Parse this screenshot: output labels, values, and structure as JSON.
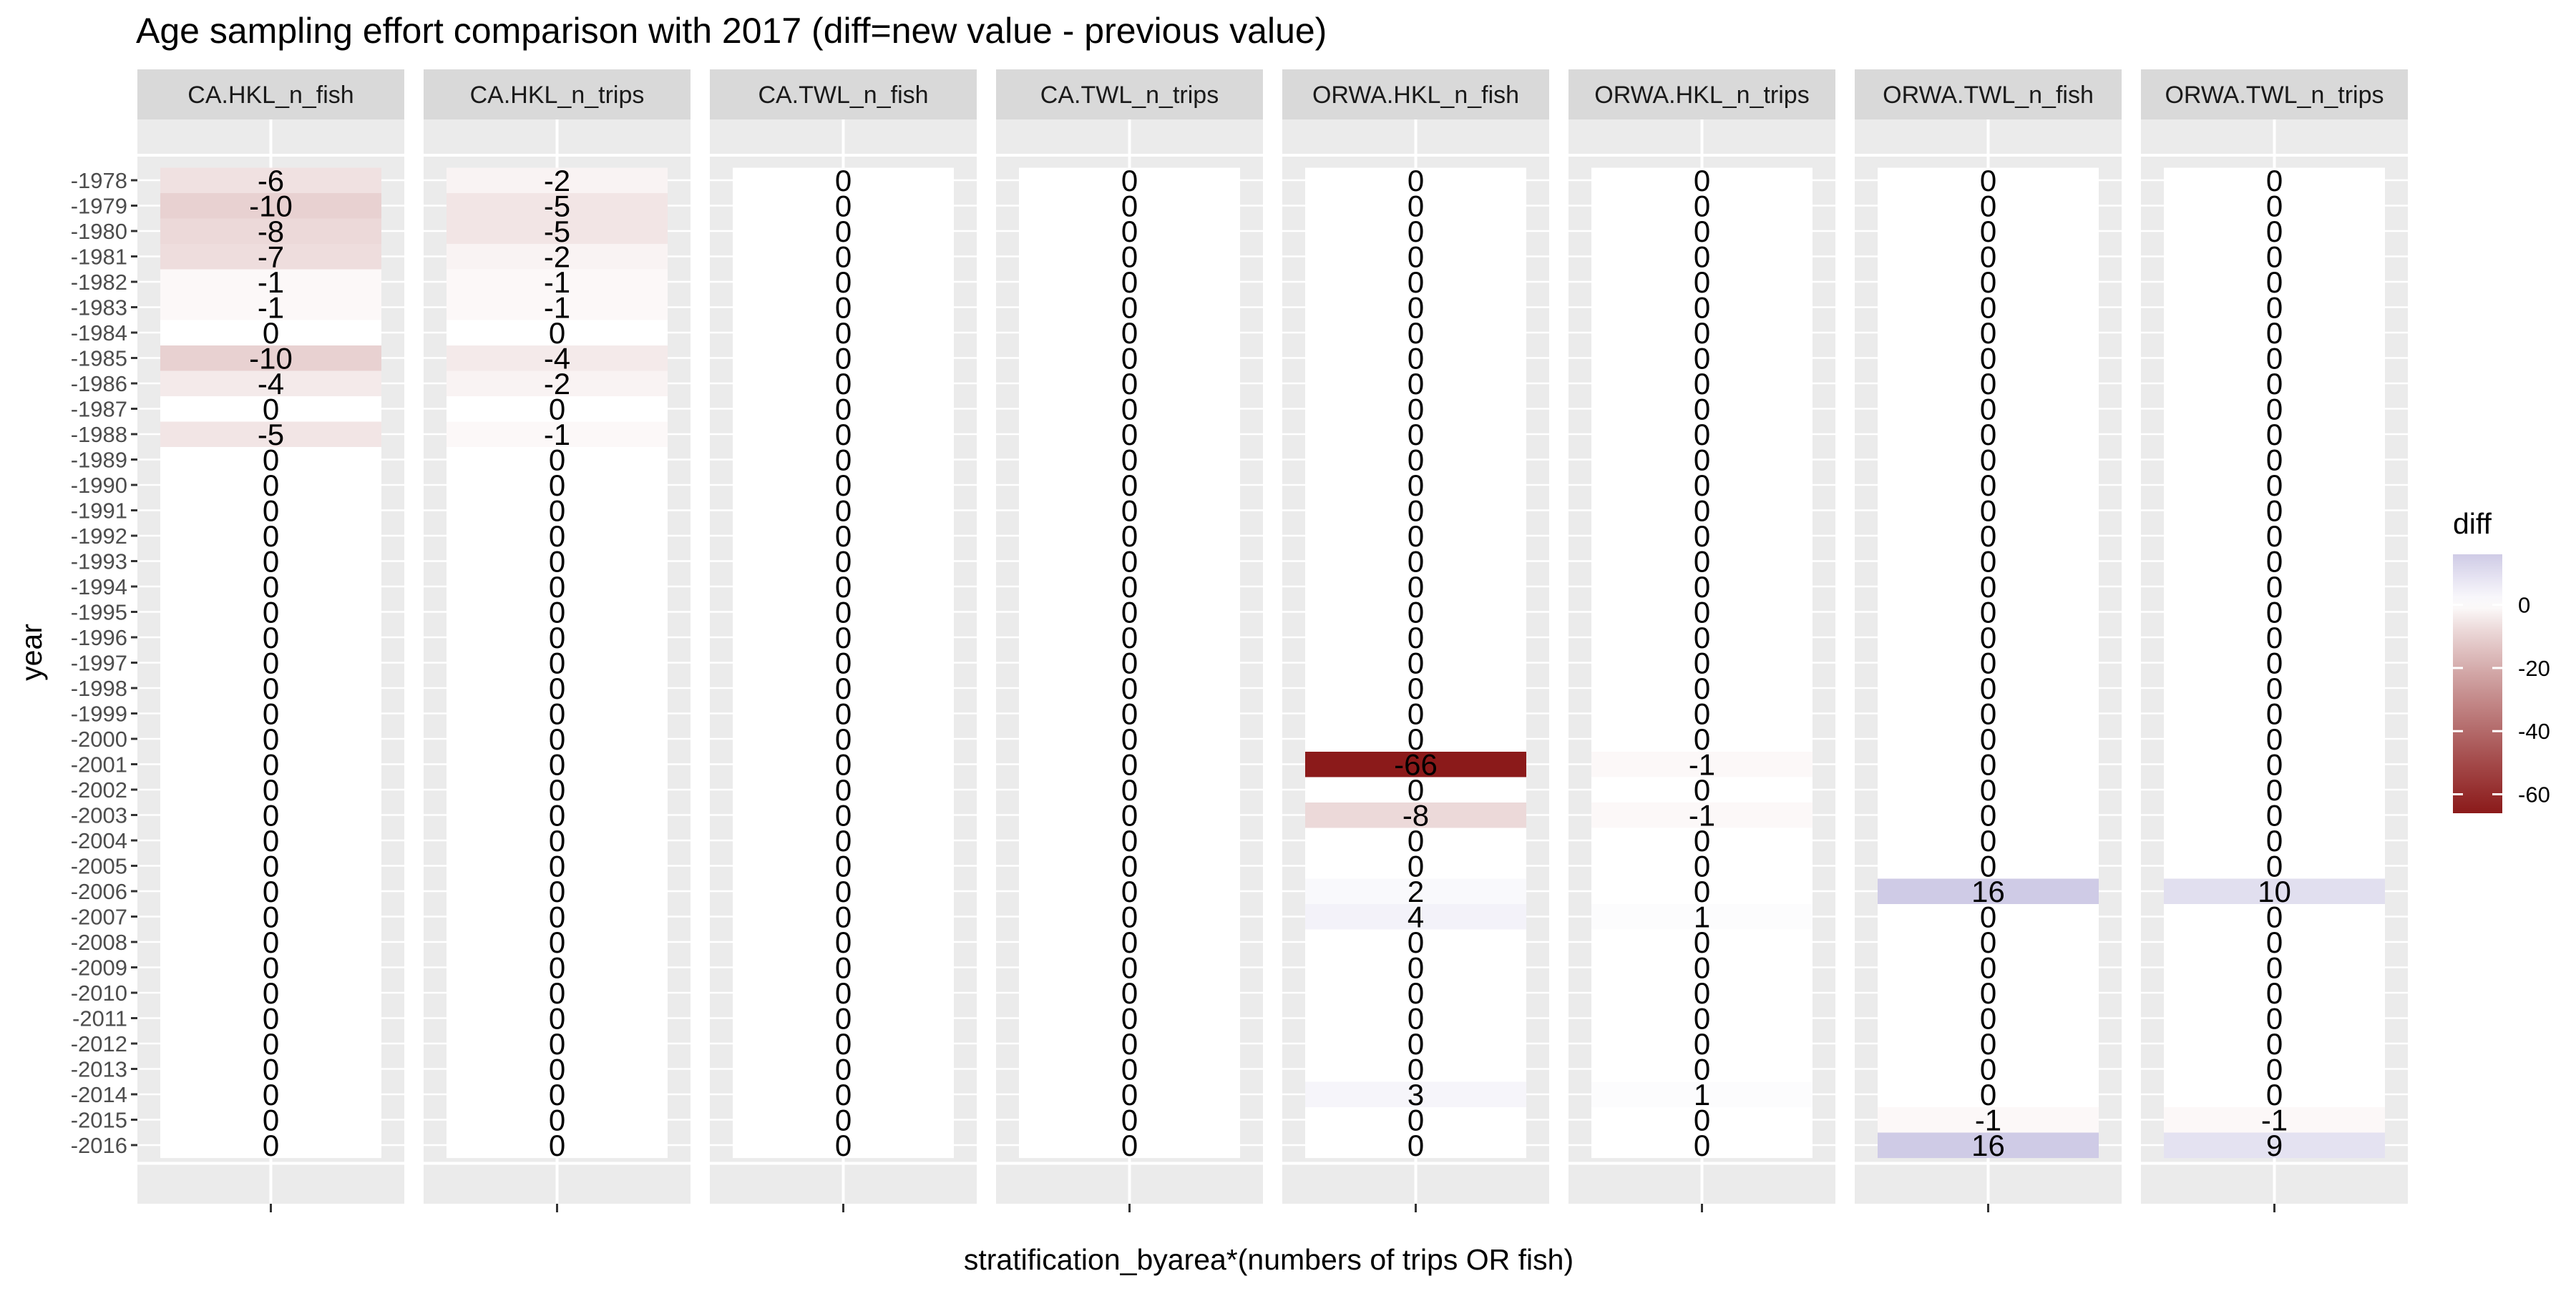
{
  "chart_data": {
    "type": "heatmap",
    "title": "Age sampling effort comparison with 2017 (diff=new value - previous value)",
    "xlabel": "stratification_byarea*(numbers of trips OR fish)",
    "ylabel": "year",
    "years": [
      "1978",
      "1979",
      "1980",
      "1981",
      "1982",
      "1983",
      "1984",
      "1985",
      "1986",
      "1987",
      "1988",
      "1989",
      "1990",
      "1991",
      "1992",
      "1993",
      "1994",
      "1995",
      "1996",
      "1997",
      "1998",
      "1999",
      "2000",
      "2001",
      "2002",
      "2003",
      "2004",
      "2005",
      "2006",
      "2007",
      "2008",
      "2009",
      "2010",
      "2011",
      "2012",
      "2013",
      "2014",
      "2015",
      "2016"
    ],
    "ytick_labels": [
      "-1978",
      "-1979",
      "-1980",
      "-1981",
      "-1982",
      "-1983",
      "-1984",
      "-1985",
      "-1986",
      "-1987",
      "-1988",
      "-1989",
      "-1990",
      "-1991",
      "-1992",
      "-1993",
      "-1994",
      "-1995",
      "-1996",
      "-1997",
      "-1998",
      "-1999",
      "-2000",
      "-2001",
      "-2002",
      "-2003",
      "-2004",
      "-2005",
      "-2006",
      "-2007",
      "-2008",
      "-2009",
      "-2010",
      "-2011",
      "-2012",
      "-2013",
      "-2014",
      "-2015",
      "-2016"
    ],
    "panels": [
      {
        "name": "CA.HKL_n_fish",
        "values": [
          -6,
          -10,
          -8,
          -7,
          -1,
          -1,
          0,
          -10,
          -4,
          0,
          -5,
          0,
          0,
          0,
          0,
          0,
          0,
          0,
          0,
          0,
          0,
          0,
          0,
          0,
          0,
          0,
          0,
          0,
          0,
          0,
          0,
          0,
          0,
          0,
          0,
          0,
          0,
          0,
          0
        ]
      },
      {
        "name": "CA.HKL_n_trips",
        "values": [
          -2,
          -5,
          -5,
          -2,
          -1,
          -1,
          0,
          -4,
          -2,
          0,
          -1,
          0,
          0,
          0,
          0,
          0,
          0,
          0,
          0,
          0,
          0,
          0,
          0,
          0,
          0,
          0,
          0,
          0,
          0,
          0,
          0,
          0,
          0,
          0,
          0,
          0,
          0,
          0,
          0
        ]
      },
      {
        "name": "CA.TWL_n_fish",
        "values": [
          0,
          0,
          0,
          0,
          0,
          0,
          0,
          0,
          0,
          0,
          0,
          0,
          0,
          0,
          0,
          0,
          0,
          0,
          0,
          0,
          0,
          0,
          0,
          0,
          0,
          0,
          0,
          0,
          0,
          0,
          0,
          0,
          0,
          0,
          0,
          0,
          0,
          0,
          0
        ]
      },
      {
        "name": "CA.TWL_n_trips",
        "values": [
          0,
          0,
          0,
          0,
          0,
          0,
          0,
          0,
          0,
          0,
          0,
          0,
          0,
          0,
          0,
          0,
          0,
          0,
          0,
          0,
          0,
          0,
          0,
          0,
          0,
          0,
          0,
          0,
          0,
          0,
          0,
          0,
          0,
          0,
          0,
          0,
          0,
          0,
          0
        ]
      },
      {
        "name": "ORWA.HKL_n_fish",
        "values": [
          0,
          0,
          0,
          0,
          0,
          0,
          0,
          0,
          0,
          0,
          0,
          0,
          0,
          0,
          0,
          0,
          0,
          0,
          0,
          0,
          0,
          0,
          0,
          -66,
          0,
          -8,
          0,
          0,
          2,
          4,
          0,
          0,
          0,
          0,
          0,
          0,
          3,
          0,
          0
        ]
      },
      {
        "name": "ORWA.HKL_n_trips",
        "values": [
          0,
          0,
          0,
          0,
          0,
          0,
          0,
          0,
          0,
          0,
          0,
          0,
          0,
          0,
          0,
          0,
          0,
          0,
          0,
          0,
          0,
          0,
          0,
          -1,
          0,
          -1,
          0,
          0,
          0,
          1,
          0,
          0,
          0,
          0,
          0,
          0,
          1,
          0,
          0
        ]
      },
      {
        "name": "ORWA.TWL_n_fish",
        "values": [
          0,
          0,
          0,
          0,
          0,
          0,
          0,
          0,
          0,
          0,
          0,
          0,
          0,
          0,
          0,
          0,
          0,
          0,
          0,
          0,
          0,
          0,
          0,
          0,
          0,
          0,
          0,
          0,
          16,
          0,
          0,
          0,
          0,
          0,
          0,
          0,
          0,
          -1,
          16
        ]
      },
      {
        "name": "ORWA.TWL_n_trips",
        "values": [
          0,
          0,
          0,
          0,
          0,
          0,
          0,
          0,
          0,
          0,
          0,
          0,
          0,
          0,
          0,
          0,
          0,
          0,
          0,
          0,
          0,
          0,
          0,
          0,
          0,
          0,
          0,
          0,
          10,
          0,
          0,
          0,
          0,
          0,
          0,
          0,
          0,
          -1,
          9
        ]
      }
    ],
    "legend": {
      "title": "diff",
      "position": "right",
      "ticks": [
        0,
        -20,
        -40,
        -60
      ],
      "limits": [
        -66,
        16
      ],
      "colors": {
        "low": "#8b1a1a",
        "mid": "#ffffff",
        "high": "#cfcbe6"
      }
    },
    "colors": {
      "panel_background": "#ebebeb",
      "strip_background": "#d9d9d9",
      "gridline": "#ffffff"
    }
  }
}
